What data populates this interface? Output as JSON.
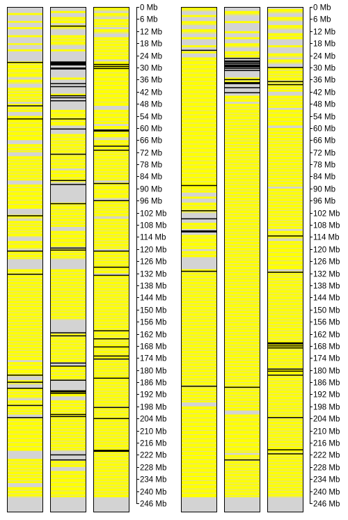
{
  "chart_data": {
    "type": "heatmap",
    "description_units": "Mb",
    "ylim": [
      0,
      250
    ],
    "yticks": [
      0,
      6,
      12,
      18,
      24,
      30,
      36,
      42,
      48,
      54,
      60,
      66,
      72,
      78,
      84,
      90,
      96,
      102,
      108,
      114,
      120,
      126,
      132,
      138,
      144,
      150,
      156,
      162,
      168,
      174,
      180,
      186,
      192,
      198,
      204,
      210,
      216,
      222,
      228,
      234,
      240,
      246
    ],
    "tick_suffix": " Mb",
    "colors": {
      "background": "#d3d3d3",
      "feature": "#ffff00",
      "marker": "#000000",
      "border": "#000000"
    },
    "groups": [
      {
        "tracks": [
          {
            "yellow": [
              [
                3,
                4
              ],
              [
                7,
                7.8
              ],
              [
                10,
                11
              ],
              [
                14,
                15
              ],
              [
                18,
                18.8
              ],
              [
                21,
                22
              ],
              [
                27,
                35
              ],
              [
                36,
                38
              ],
              [
                40,
                47
              ],
              [
                48,
                52
              ],
              [
                54,
                66
              ],
              [
                68,
                72
              ],
              [
                74,
                86
              ],
              [
                88,
                100
              ],
              [
                103,
                105
              ],
              [
                106,
                114
              ],
              [
                116,
                120
              ],
              [
                121,
                125
              ],
              [
                130,
                175
              ],
              [
                176,
                183
              ],
              [
                185,
                187
              ],
              [
                189,
                194
              ],
              [
                195,
                202
              ],
              [
                204,
                220
              ],
              [
                224,
                236
              ],
              [
                238,
                243
              ]
            ],
            "black": [
              27.5,
              49,
              55.5,
              103.5,
              121,
              132.5,
              182.5,
              186,
              189,
              197.5,
              203.5
            ]
          },
          {
            "yellow": [
              [
                2,
                3
              ],
              [
                5,
                8
              ],
              [
                9,
                11
              ],
              [
                14,
                19
              ],
              [
                21,
                22
              ],
              [
                35,
                36
              ],
              [
                43,
                44
              ],
              [
                51,
                59
              ],
              [
                63,
                80
              ],
              [
                81,
                87
              ],
              [
                97,
                109
              ],
              [
                111,
                119
              ],
              [
                120,
                125
              ],
              [
                130,
                155
              ],
              [
                162,
                176
              ],
              [
                178,
                185
              ],
              [
                190,
                193
              ],
              [
                195,
                220
              ],
              [
                225,
                228
              ],
              [
                230,
                243
              ]
            ],
            "black": [
              9.5,
              [
                27,
                29
              ],
              [
                30,
                31
              ],
              38,
              39.5,
              44,
              45,
              46.5,
              55.5,
              60.5,
              73,
              86,
              88,
              97.5,
              119.5,
              120.5,
              161.5,
              163,
              176.5,
              178,
              185,
              [
                190,
                191
              ],
              191.5,
              202,
              203,
              222,
              224.5
            ]
          },
          {
            "yellow": [
              [
                0,
                2
              ],
              [
                3,
                5
              ],
              [
                6,
                10
              ],
              [
                11,
                13
              ],
              [
                15,
                26
              ],
              [
                27,
                49
              ],
              [
                51,
                58
              ],
              [
                59,
                65
              ],
              [
                66,
                86
              ],
              [
                87,
                95
              ],
              [
                96,
                104
              ],
              [
                105,
                120
              ],
              [
                121,
                132
              ],
              [
                133,
                243
              ]
            ],
            "black": [
              28.5,
              29.5,
              30.5,
              61,
              61.5,
              69,
              71,
              87.5,
              96,
              121,
              129,
              133,
              160.5,
              164.5,
              168.5,
              173,
              174.5,
              184,
              198.5,
              204,
              [
                219.5,
                220.5
              ]
            ]
          }
        ]
      },
      {
        "tracks": [
          {
            "yellow": [
              [
                0,
                2
              ],
              [
                4,
                5
              ],
              [
                7,
                9
              ],
              [
                11,
                13
              ],
              [
                15,
                16
              ],
              [
                19,
                20
              ],
              [
                22,
                23
              ],
              [
                25,
                92
              ],
              [
                94,
                95
              ],
              [
                97,
                102
              ],
              [
                107,
                110
              ],
              [
                113,
                120
              ],
              [
                121,
                124
              ],
              [
                130,
                196
              ],
              [
                198,
                243
              ]
            ],
            "black": [
              21.5,
              88.5,
              101,
              105,
              111,
              111.5,
              131,
              188
            ],
            "gray_band": [
              [
                107,
                110
              ]
            ]
          },
          {
            "yellow": [
              [
                2,
                4
              ],
              [
                7,
                8
              ],
              [
                12,
                13
              ],
              [
                15,
                16
              ],
              [
                18,
                20
              ],
              [
                22,
                25
              ],
              [
                35,
                38
              ],
              [
                44,
                47
              ],
              [
                48,
                200
              ],
              [
                202,
                221
              ],
              [
                222,
                243
              ]
            ],
            "black": [
              25.5,
              [
                26.5,
                27.5
              ],
              28,
              [
                28.5,
                30
              ],
              30.5,
              31.5,
              36,
              37.5,
              38,
              40,
              42.5,
              188.5,
              224.5
            ]
          },
          {
            "yellow": [
              [
                1,
                3
              ],
              [
                5,
                7
              ],
              [
                9,
                11
              ],
              [
                13,
                16
              ],
              [
                19,
                20
              ],
              [
                23,
                25
              ],
              [
                26,
                28
              ],
              [
                30,
                42
              ],
              [
                44,
                50
              ],
              [
                51,
                59
              ],
              [
                60,
                89
              ],
              [
                90,
                110
              ],
              [
                111,
                115
              ],
              [
                116,
                130
              ],
              [
                131,
                243
              ]
            ],
            "black": [
              30,
              37,
              38.5,
              113.5,
              131.5,
              166.5,
              167,
              168,
              169,
              179.5,
              180.5,
              182.5,
              203.5,
              219.5,
              221.5
            ]
          }
        ]
      }
    ]
  }
}
